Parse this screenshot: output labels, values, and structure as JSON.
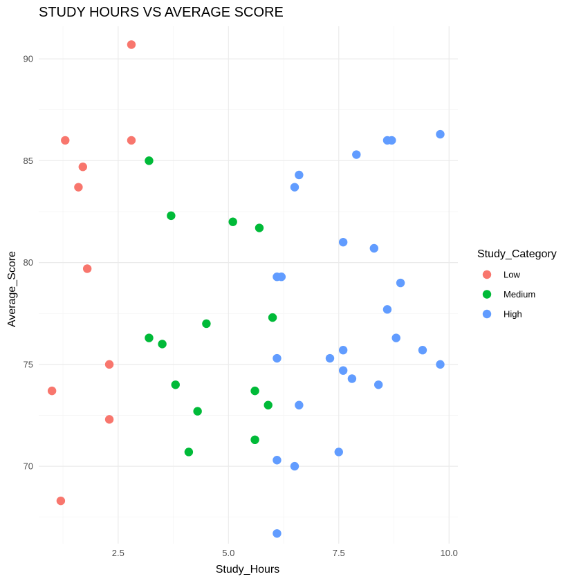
{
  "chart_data": {
    "type": "scatter",
    "title": "STUDY HOURS VS AVERAGE SCORE",
    "xlabel": "Study_Hours",
    "ylabel": "Average_Score",
    "xlim": [
      0.7,
      10.2
    ],
    "ylim": [
      66.2,
      91.6
    ],
    "x_ticks": [
      2.5,
      5.0,
      7.5,
      10.0
    ],
    "x_tick_labels": [
      "2.5",
      "5.0",
      "7.5",
      "10.0"
    ],
    "y_ticks": [
      70,
      75,
      80,
      85,
      90
    ],
    "y_tick_labels": [
      "70",
      "75",
      "80",
      "85",
      "90"
    ],
    "grid": true,
    "legend": {
      "title": "Study_Category",
      "placement": "right"
    },
    "series": [
      {
        "name": "Low",
        "color": "#F8766D",
        "points": [
          {
            "x": 2.8,
            "y": 90.7
          },
          {
            "x": 1.3,
            "y": 86.0
          },
          {
            "x": 2.8,
            "y": 86.0
          },
          {
            "x": 1.7,
            "y": 84.7
          },
          {
            "x": 1.6,
            "y": 83.7
          },
          {
            "x": 1.8,
            "y": 79.7
          },
          {
            "x": 2.3,
            "y": 75.0
          },
          {
            "x": 1.0,
            "y": 73.7
          },
          {
            "x": 2.3,
            "y": 72.3
          },
          {
            "x": 1.2,
            "y": 68.3
          }
        ]
      },
      {
        "name": "Medium",
        "color": "#00BA38",
        "points": [
          {
            "x": 3.2,
            "y": 85.0
          },
          {
            "x": 3.7,
            "y": 82.3
          },
          {
            "x": 5.1,
            "y": 82.0
          },
          {
            "x": 5.7,
            "y": 81.7
          },
          {
            "x": 6.0,
            "y": 77.3
          },
          {
            "x": 4.5,
            "y": 77.0
          },
          {
            "x": 3.2,
            "y": 76.3
          },
          {
            "x": 3.5,
            "y": 76.0
          },
          {
            "x": 3.8,
            "y": 74.0
          },
          {
            "x": 5.6,
            "y": 73.7
          },
          {
            "x": 5.9,
            "y": 73.0
          },
          {
            "x": 4.3,
            "y": 72.7
          },
          {
            "x": 4.1,
            "y": 70.7
          },
          {
            "x": 5.6,
            "y": 71.3
          }
        ]
      },
      {
        "name": "High",
        "color": "#619CFF",
        "points": [
          {
            "x": 9.8,
            "y": 86.3
          },
          {
            "x": 8.6,
            "y": 86.0
          },
          {
            "x": 8.7,
            "y": 86.0
          },
          {
            "x": 7.9,
            "y": 85.3
          },
          {
            "x": 6.6,
            "y": 84.3
          },
          {
            "x": 6.5,
            "y": 83.7
          },
          {
            "x": 7.6,
            "y": 81.0
          },
          {
            "x": 8.3,
            "y": 80.7
          },
          {
            "x": 6.1,
            "y": 79.3
          },
          {
            "x": 6.2,
            "y": 79.3
          },
          {
            "x": 8.9,
            "y": 79.0
          },
          {
            "x": 8.6,
            "y": 77.7
          },
          {
            "x": 8.8,
            "y": 76.3
          },
          {
            "x": 7.6,
            "y": 75.7
          },
          {
            "x": 9.4,
            "y": 75.7
          },
          {
            "x": 6.1,
            "y": 75.3
          },
          {
            "x": 7.3,
            "y": 75.3
          },
          {
            "x": 9.8,
            "y": 75.0
          },
          {
            "x": 7.6,
            "y": 74.7
          },
          {
            "x": 7.8,
            "y": 74.3
          },
          {
            "x": 8.4,
            "y": 74.0
          },
          {
            "x": 6.6,
            "y": 73.0
          },
          {
            "x": 7.5,
            "y": 70.7
          },
          {
            "x": 6.1,
            "y": 70.3
          },
          {
            "x": 6.5,
            "y": 70.0
          },
          {
            "x": 6.1,
            "y": 66.7
          }
        ]
      }
    ]
  }
}
